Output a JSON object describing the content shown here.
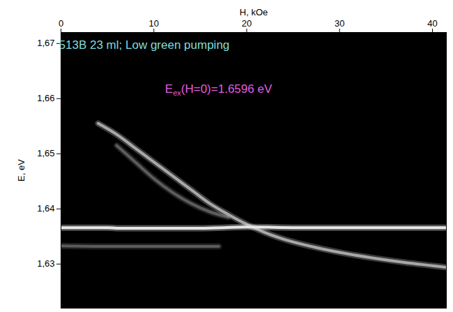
{
  "chart_data": {
    "type": "line",
    "x_label": "H, kOe",
    "y_label": "E, eV",
    "xlim": [
      0,
      41.5
    ],
    "ylim": [
      1.622,
      1.672
    ],
    "xticks": [
      0,
      10,
      20,
      30,
      40
    ],
    "yticks": [
      {
        "value": 1.63,
        "label": "1,63"
      },
      {
        "value": 1.64,
        "label": "1,64"
      },
      {
        "value": 1.65,
        "label": "1,65"
      },
      {
        "value": 1.66,
        "label": "1,66"
      },
      {
        "value": 1.67,
        "label": "1,67"
      }
    ],
    "grid": false,
    "series": [
      {
        "color": "#5a5a5a",
        "x": [
          0,
          5,
          10,
          15,
          17
        ],
        "values": [
          1.6333,
          1.6332,
          1.6332,
          1.6332,
          1.6332
        ]
      },
      {
        "color": "#5c5c5c",
        "x": [
          6,
          8,
          10,
          12,
          14,
          16,
          18
        ],
        "values": [
          1.6515,
          1.6485,
          1.6455,
          1.643,
          1.641,
          1.6395,
          1.6385
        ]
      },
      {
        "color": "#a8a8a8",
        "x": [
          4,
          6,
          8,
          10,
          12,
          14,
          16,
          18,
          20,
          22,
          25,
          28,
          31,
          34,
          37,
          40,
          41.5
        ],
        "values": [
          1.6555,
          1.6535,
          1.651,
          1.6485,
          1.646,
          1.6435,
          1.641,
          1.639,
          1.6372,
          1.6357,
          1.634,
          1.6328,
          1.6318,
          1.631,
          1.6303,
          1.6297,
          1.6294
        ]
      },
      {
        "color": "#e6e6e6",
        "x": [
          0,
          5,
          6,
          10,
          15,
          20,
          21,
          25,
          30,
          35,
          40,
          41.5
        ],
        "values": [
          1.6366,
          1.6366,
          1.6365,
          1.6365,
          1.6365,
          1.6367,
          1.6367,
          1.6366,
          1.6366,
          1.6366,
          1.6366,
          1.6366
        ]
      }
    ],
    "annotations": [
      {
        "parts": [
          {
            "text": "513B 23 ml; Low green pumping"
          }
        ],
        "x": 9,
        "y": 1.6695,
        "color": "#7fdcdc"
      },
      {
        "parts": [
          {
            "text": "E"
          },
          {
            "text": "ex",
            "sub": true
          },
          {
            "text": "(H=0)=1.6596 eV"
          }
        ],
        "x": 17,
        "y": 1.6615,
        "color": "#e05ce0"
      }
    ]
  }
}
